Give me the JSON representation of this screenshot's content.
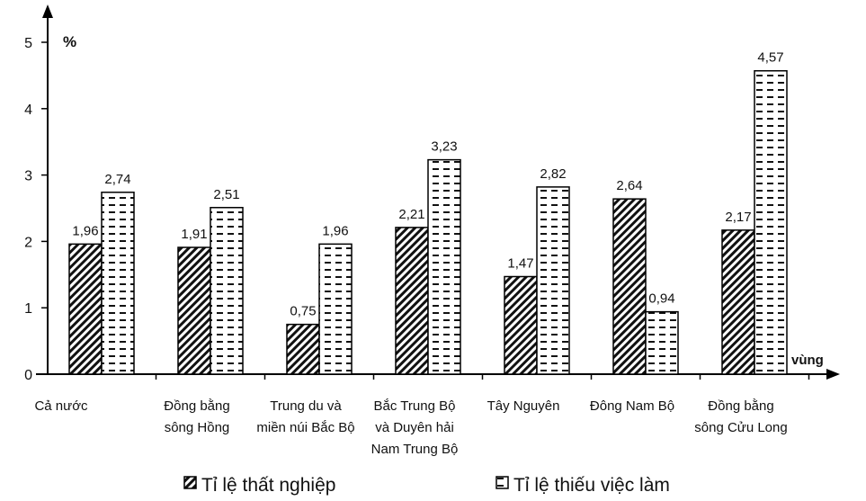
{
  "chart_data": {
    "type": "bar",
    "title": "",
    "ylabel": "%",
    "xlabel": "vùng",
    "ylim": [
      0,
      5
    ],
    "yticks": [
      "0",
      "1",
      "2",
      "3",
      "4",
      "5"
    ],
    "categories": [
      [
        "Cả nước"
      ],
      [
        "Đồng bằng",
        "sông Hồng"
      ],
      [
        "Trung du và",
        "miền núi Bắc Bộ"
      ],
      [
        "Bắc Trung Bộ",
        "và Duyên hải",
        "Nam Trung Bộ"
      ],
      [
        "Tây Nguyên"
      ],
      [
        "Đông Nam Bộ"
      ],
      [
        "Đồng bằng",
        "sông Cửu Long"
      ]
    ],
    "series": [
      {
        "name": "Tỉ lệ thất nghiệp",
        "pattern": "diagonal-hatch",
        "values": [
          1.96,
          1.91,
          0.75,
          2.21,
          1.47,
          2.64,
          2.17
        ],
        "labels": [
          "1,96",
          "1,91",
          "0,75",
          "2,21",
          "1,47",
          "2,64",
          "2,17"
        ]
      },
      {
        "name": "Tỉ lệ thiếu việc làm",
        "pattern": "dashed-horizontal",
        "values": [
          2.74,
          2.51,
          1.96,
          3.23,
          2.82,
          0.94,
          4.57
        ],
        "labels": [
          "2,74",
          "2,51",
          "1,96",
          "3,23",
          "2,82",
          "0,94",
          "4,57"
        ]
      }
    ],
    "legend_position": "bottom",
    "grid": false
  }
}
